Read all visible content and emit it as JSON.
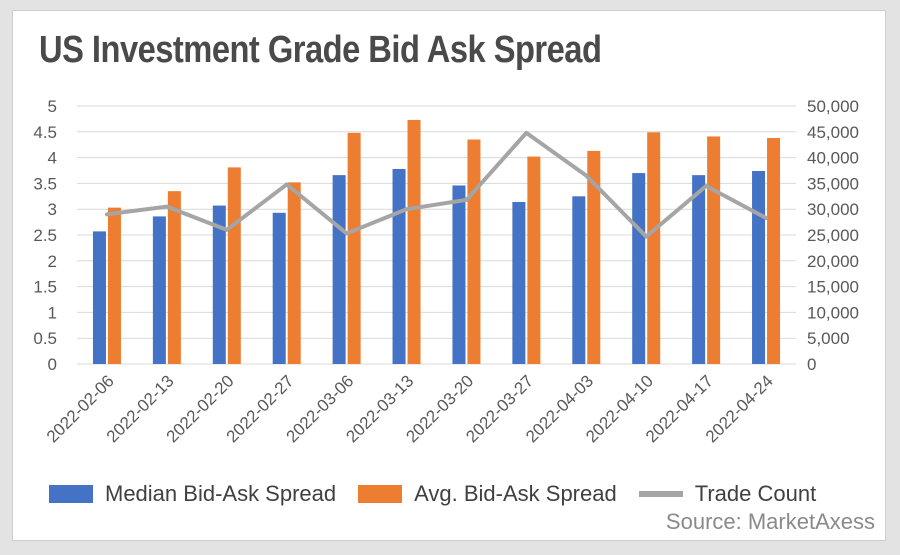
{
  "title": "US Investment Grade Bid Ask Spread",
  "source": "Source: MarketAxess",
  "colors": {
    "median": "#4472c4",
    "avg": "#ed7d31",
    "trade": "#a5a5a5",
    "grid": "#d9d9d9",
    "axis_text": "#595959"
  },
  "legend": {
    "median": "Median Bid-Ask Spread",
    "avg": "Avg. Bid-Ask Spread",
    "trade": "Trade Count"
  },
  "chart_data": {
    "type": "bar",
    "categories": [
      "2022-02-06",
      "2022-02-13",
      "2022-02-20",
      "2022-02-27",
      "2022-03-06",
      "2022-03-13",
      "2022-03-20",
      "2022-03-27",
      "2022-04-03",
      "2022-04-10",
      "2022-04-17",
      "2022-04-24"
    ],
    "series": [
      {
        "name": "Median Bid-Ask Spread",
        "type": "bar",
        "axis": "left",
        "values": [
          2.57,
          2.86,
          3.07,
          2.93,
          3.66,
          3.78,
          3.46,
          3.14,
          3.25,
          3.7,
          3.66,
          3.74
        ]
      },
      {
        "name": "Avg. Bid-Ask Spread",
        "type": "bar",
        "axis": "left",
        "values": [
          3.03,
          3.35,
          3.81,
          3.52,
          4.48,
          4.73,
          4.35,
          4.02,
          4.13,
          4.49,
          4.41,
          4.38
        ]
      },
      {
        "name": "Trade Count",
        "type": "line",
        "axis": "right",
        "values": [
          29000,
          30500,
          26000,
          34800,
          25300,
          30000,
          31800,
          44800,
          36500,
          24700,
          34500,
          28300
        ]
      }
    ],
    "ylim": [
      0,
      5
    ],
    "yticks": [
      "0",
      "0.5",
      "1",
      "1.5",
      "2",
      "2.5",
      "3",
      "3.5",
      "4",
      "4.5",
      "5"
    ],
    "y2lim": [
      0,
      50000
    ],
    "y2ticks": [
      "0",
      "5,000",
      "10,000",
      "15,000",
      "20,000",
      "25,000",
      "30,000",
      "35,000",
      "40,000",
      "45,000",
      "50,000"
    ],
    "grid": true,
    "legend_position": "bottom"
  }
}
